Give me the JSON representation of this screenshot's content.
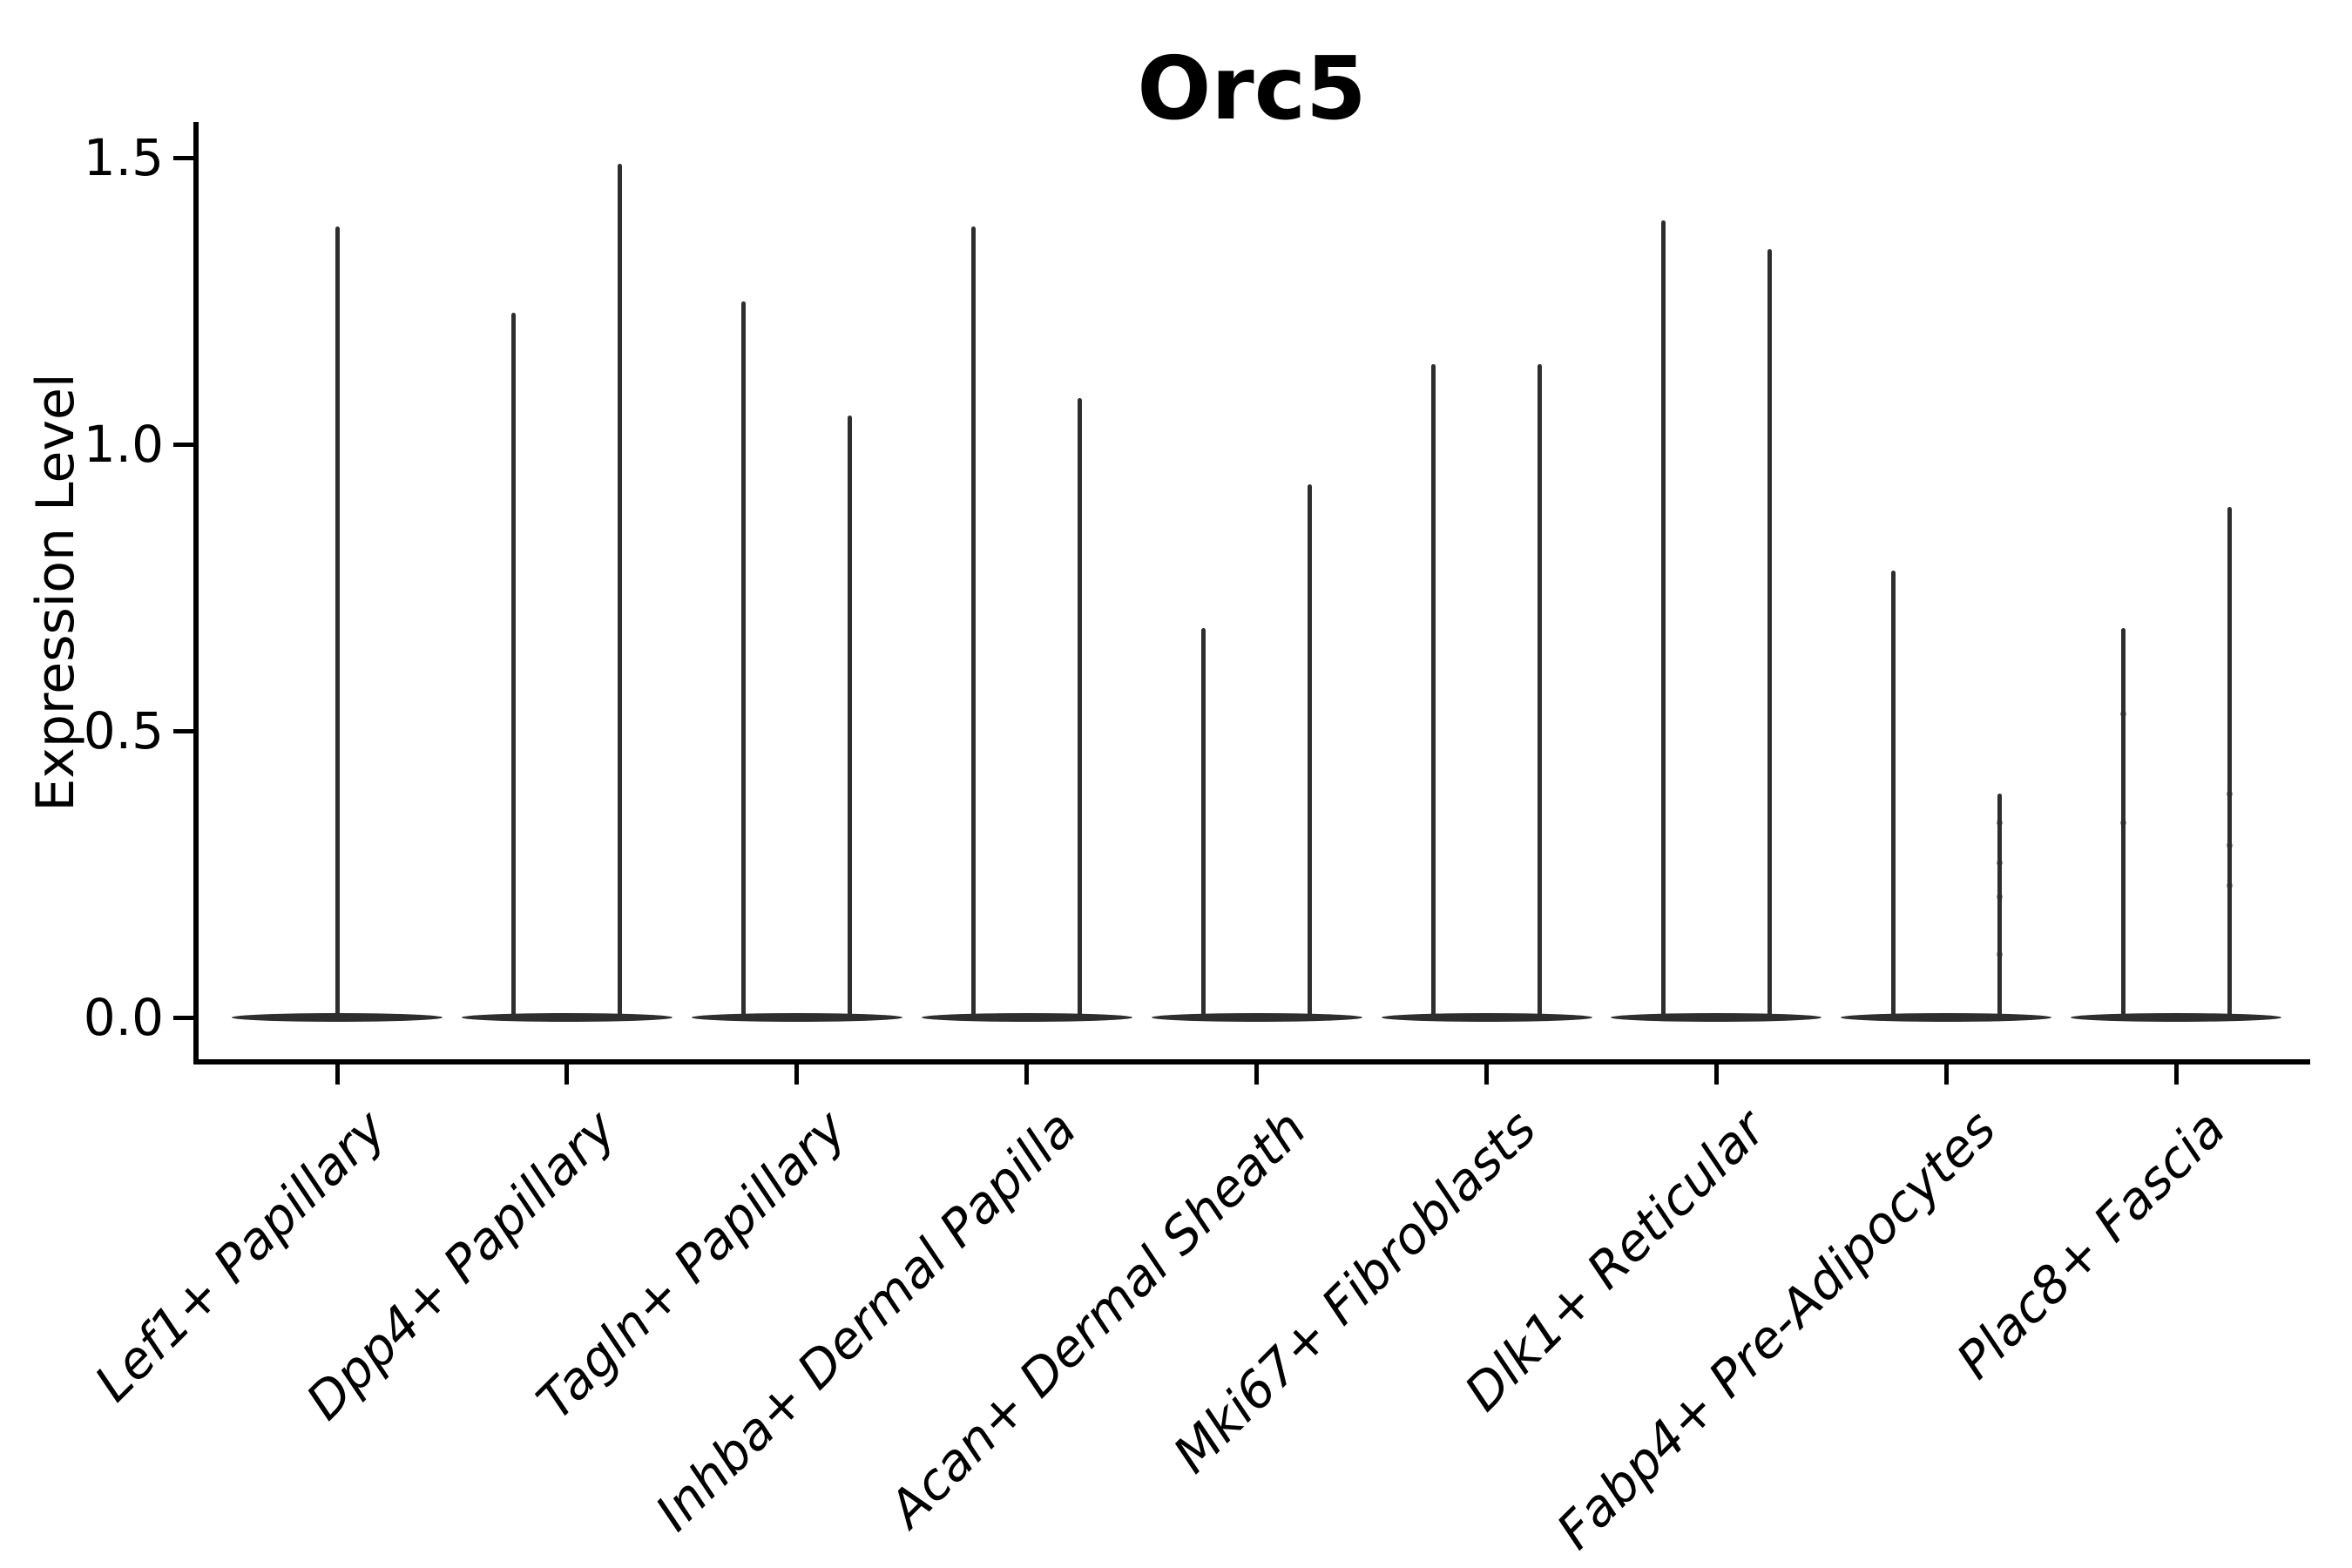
{
  "title": "Orc5",
  "axes": {
    "ylabel": "Expression Level",
    "ytick_labels": [
      "0.0",
      "0.5",
      "1.0",
      "1.5"
    ]
  },
  "colors": {
    "violin": "#2e2e2e",
    "axis": "#000000",
    "text": "#000000",
    "background": "#ffffff"
  },
  "chart_data": {
    "type": "violin",
    "title": "Orc5",
    "xlabel": "",
    "ylabel": "Expression Level",
    "ylim": [
      -0.07,
      1.57
    ],
    "yticks": [
      0.0,
      0.5,
      1.0,
      1.5
    ],
    "grid": false,
    "legend": null,
    "x_tick_rotation": 45,
    "x_tick_style": "italic",
    "categories": [
      "Lef1+ Papillary",
      "Dpp4+ Papillary",
      "Tagln+ Papillary",
      "Inhba+ Dermal Papilla",
      "Acan+ Dermal Sheath",
      "Mki67+ Fibroblasts",
      "Dlk1+ Reticular",
      "Fabp4+ Pre-Adipocytes",
      "Plac8+ Fascia"
    ],
    "violins": [
      {
        "category": "Lef1+ Papillary",
        "body_value": 0,
        "max_values": [
          1.38
        ]
      },
      {
        "category": "Dpp4+ Papillary",
        "body_value": 0,
        "max_values": [
          1.23,
          1.49
        ]
      },
      {
        "category": "Tagln+ Papillary",
        "body_value": 0,
        "max_values": [
          1.25,
          1.05
        ]
      },
      {
        "category": "Inhba+ Dermal Papilla",
        "body_value": 0,
        "max_values": [
          1.38,
          1.08
        ]
      },
      {
        "category": "Acan+ Dermal Sheath",
        "body_value": 0,
        "max_values": [
          0.68,
          0.93
        ]
      },
      {
        "category": "Mki67+ Fibroblasts",
        "body_value": 0,
        "max_values": [
          1.14,
          1.14
        ]
      },
      {
        "category": "Dlk1+ Reticular",
        "body_value": 0,
        "max_values": [
          1.39,
          1.34
        ]
      },
      {
        "category": "Fabp4+ Pre-Adipocytes",
        "body_value": 0,
        "max_values": [
          0.78,
          0.39
        ]
      },
      {
        "category": "Plac8+ Fascia",
        "body_value": 0,
        "max_values": [
          0.68,
          0.89
        ]
      }
    ],
    "faint_points": [
      {
        "category": "Fabp4+ Pre-Adipocytes",
        "violin": 1,
        "values": [
          0.34,
          0.27,
          0.21,
          0.11
        ]
      },
      {
        "category": "Plac8+ Fascia",
        "violin": 0,
        "values": [
          0.53,
          0.34
        ]
      },
      {
        "category": "Plac8+ Fascia",
        "violin": 1,
        "values": [
          0.39,
          0.3,
          0.23
        ]
      }
    ]
  }
}
